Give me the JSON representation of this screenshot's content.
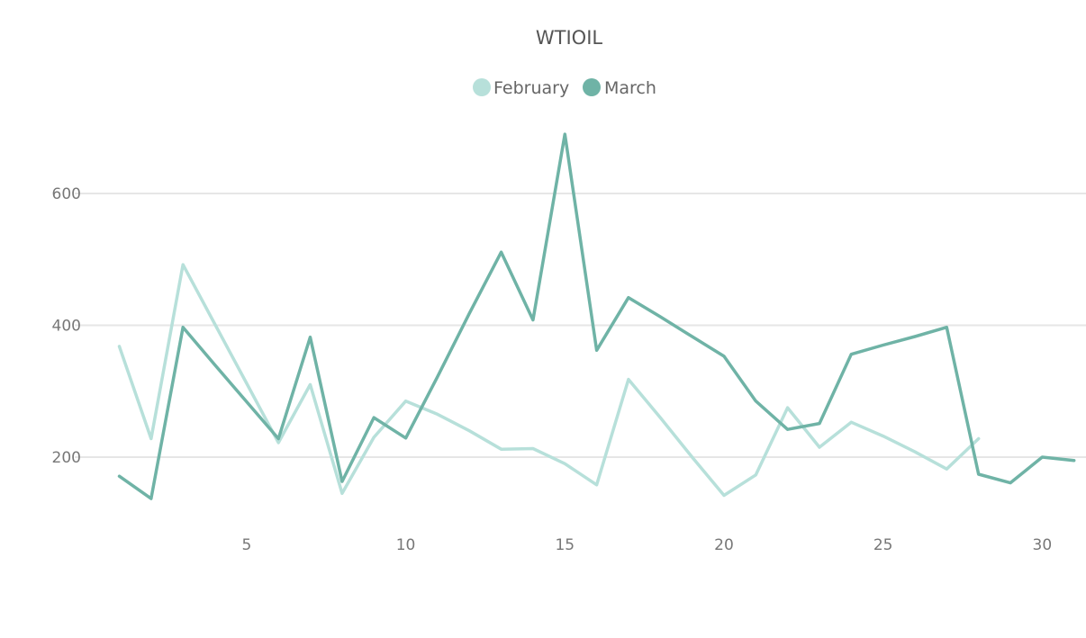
{
  "chart_data": {
    "type": "line",
    "title": "WTIOIL",
    "xlabel": "",
    "ylabel": "",
    "xlim": [
      0.5,
      31.5
    ],
    "ylim": [
      100,
      700
    ],
    "x_ticks": [
      5,
      10,
      15,
      20,
      25,
      30
    ],
    "y_ticks": [
      200,
      400,
      600
    ],
    "grid": "horizontal",
    "legend_position": "top-center",
    "series": [
      {
        "name": "February",
        "color": "#b7e0da",
        "x": [
          1,
          2,
          3,
          4,
          5,
          6,
          7,
          8,
          9,
          10,
          11,
          12,
          13,
          14,
          15,
          16,
          17,
          18,
          19,
          20,
          21,
          22,
          23,
          24,
          25,
          26,
          27,
          28
        ],
        "values": [
          368,
          228,
          492,
          402,
          312,
          222,
          310,
          145,
          230,
          285,
          265,
          240,
          212,
          213,
          190,
          158,
          318,
          260,
          200,
          142,
          173,
          275,
          215,
          253,
          232,
          208,
          182,
          228
        ]
      },
      {
        "name": "March",
        "color": "#6fb3a6",
        "x": [
          1,
          2,
          3,
          4,
          5,
          6,
          7,
          8,
          9,
          10,
          11,
          12,
          13,
          14,
          15,
          16,
          17,
          18,
          19,
          20,
          21,
          22,
          23,
          24,
          25,
          26,
          27,
          28,
          29,
          30,
          31
        ],
        "values": [
          171,
          137,
          397,
          340,
          284,
          228,
          382,
          163,
          260,
          229,
          322,
          418,
          511,
          408,
          690,
          362,
          442,
          413,
          383,
          353,
          285,
          242,
          251,
          356,
          370,
          383,
          397,
          174,
          161,
          200,
          195
        ]
      }
    ]
  }
}
